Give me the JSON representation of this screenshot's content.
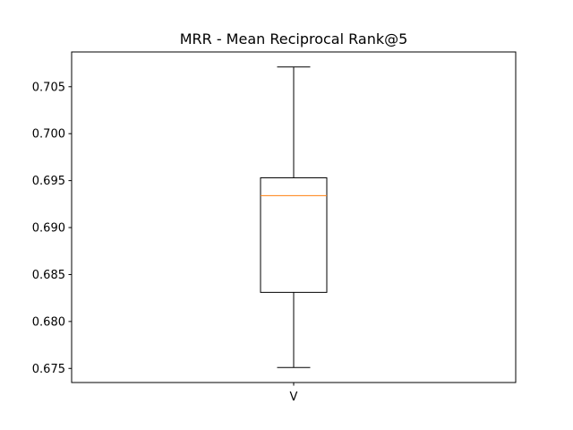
{
  "chart_data": {
    "type": "box",
    "title": "MRR - Mean Reciprocal Rank@5",
    "xlabel": "",
    "ylabel": "",
    "categories": [
      "V"
    ],
    "boxes": [
      {
        "label": "V",
        "whisker_low": 0.6751,
        "q1": 0.6831,
        "median": 0.6934,
        "q3": 0.6953,
        "whisker_high": 0.7071
      }
    ],
    "ylim": [
      0.6735,
      0.7087
    ],
    "yticks": [
      0.675,
      0.68,
      0.685,
      0.69,
      0.695,
      0.7,
      0.705
    ],
    "ytick_labels": [
      "0.675",
      "0.680",
      "0.685",
      "0.690",
      "0.695",
      "0.700",
      "0.705"
    ],
    "grid": false,
    "colors": {
      "box": "#000000",
      "median": "#ff7f0e",
      "whisker": "#000000"
    }
  }
}
